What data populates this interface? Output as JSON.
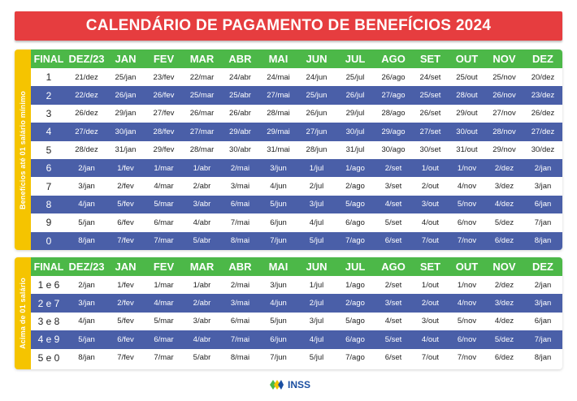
{
  "title": "CALENDÁRIO DE PAGAMENTO DE BENEFÍCIOS 2024",
  "headers": [
    "FINAL",
    "DEZ/23",
    "JAN",
    "FEV",
    "MAR",
    "ABR",
    "MAI",
    "JUN",
    "JUL",
    "AGO",
    "SET",
    "OUT",
    "NOV",
    "DEZ"
  ],
  "section1": {
    "side_label": "Benefícios até 01 salário mínimo",
    "rows": [
      [
        "1",
        "21/dez",
        "25/jan",
        "23/fev",
        "22/mar",
        "24/abr",
        "24/mai",
        "24/jun",
        "25/jul",
        "26/ago",
        "24/set",
        "25/out",
        "25/nov",
        "20/dez"
      ],
      [
        "2",
        "22/dez",
        "26/jan",
        "26/fev",
        "25/mar",
        "25/abr",
        "27/mai",
        "25/jun",
        "26/jul",
        "27/ago",
        "25/set",
        "28/out",
        "26/nov",
        "23/dez"
      ],
      [
        "3",
        "26/dez",
        "29/jan",
        "27/fev",
        "26/mar",
        "26/abr",
        "28/mai",
        "26/jun",
        "29/jul",
        "28/ago",
        "26/set",
        "29/out",
        "27/nov",
        "26/dez"
      ],
      [
        "4",
        "27/dez",
        "30/jan",
        "28/fev",
        "27/mar",
        "29/abr",
        "29/mai",
        "27/jun",
        "30/jul",
        "29/ago",
        "27/set",
        "30/out",
        "28/nov",
        "27/dez"
      ],
      [
        "5",
        "28/dez",
        "31/jan",
        "29/fev",
        "28/mar",
        "30/abr",
        "31/mai",
        "28/jun",
        "31/jul",
        "30/ago",
        "30/set",
        "31/out",
        "29/nov",
        "30/dez"
      ],
      [
        "6",
        "2/jan",
        "1/fev",
        "1/mar",
        "1/abr",
        "2/mai",
        "3/jun",
        "1/jul",
        "1/ago",
        "2/set",
        "1/out",
        "1/nov",
        "2/dez",
        "2/jan"
      ],
      [
        "7",
        "3/jan",
        "2/fev",
        "4/mar",
        "2/abr",
        "3/mai",
        "4/jun",
        "2/jul",
        "2/ago",
        "3/set",
        "2/out",
        "4/nov",
        "3/dez",
        "3/jan"
      ],
      [
        "8",
        "4/jan",
        "5/fev",
        "5/mar",
        "3/abr",
        "6/mai",
        "5/jun",
        "3/jul",
        "5/ago",
        "4/set",
        "3/out",
        "5/nov",
        "4/dez",
        "6/jan"
      ],
      [
        "9",
        "5/jan",
        "6/fev",
        "6/mar",
        "4/abr",
        "7/mai",
        "6/jun",
        "4/jul",
        "6/ago",
        "5/set",
        "4/out",
        "6/nov",
        "5/dez",
        "7/jan"
      ],
      [
        "0",
        "8/jan",
        "7/fev",
        "7/mar",
        "5/abr",
        "8/mai",
        "7/jun",
        "5/jul",
        "7/ago",
        "6/set",
        "7/out",
        "7/nov",
        "6/dez",
        "8/jan"
      ]
    ]
  },
  "section2": {
    "side_label": "Acima de 01 salário",
    "rows": [
      [
        "1 e 6",
        "2/jan",
        "1/fev",
        "1/mar",
        "1/abr",
        "2/mai",
        "3/jun",
        "1/jul",
        "1/ago",
        "2/set",
        "1/out",
        "1/nov",
        "2/dez",
        "2/jan"
      ],
      [
        "2 e 7",
        "3/jan",
        "2/fev",
        "4/mar",
        "2/abr",
        "3/mai",
        "4/jun",
        "2/jul",
        "2/ago",
        "3/set",
        "2/out",
        "4/nov",
        "3/dez",
        "3/jan"
      ],
      [
        "3 e 8",
        "4/jan",
        "5/fev",
        "5/mar",
        "3/abr",
        "6/mai",
        "5/jun",
        "3/jul",
        "5/ago",
        "4/set",
        "3/out",
        "5/nov",
        "4/dez",
        "6/jan"
      ],
      [
        "4 e 9",
        "5/jan",
        "6/fev",
        "6/mar",
        "4/abr",
        "7/mai",
        "6/jun",
        "4/jul",
        "6/ago",
        "5/set",
        "4/out",
        "6/nov",
        "5/dez",
        "7/jan"
      ],
      [
        "5 e 0",
        "8/jan",
        "7/fev",
        "7/mar",
        "5/abr",
        "8/mai",
        "7/jun",
        "5/jul",
        "7/ago",
        "6/set",
        "7/out",
        "7/nov",
        "6/dez",
        "8/jan"
      ]
    ]
  },
  "logo": {
    "text": "INSS",
    "icon": "inss-logo-icon"
  },
  "colors": {
    "title_bg": "#e63d3f",
    "header_bg": "#4cb848",
    "stripe_bg": "#4a5fa8",
    "side_bg": "#f5c400",
    "logo_text": "#1b4fa1"
  }
}
